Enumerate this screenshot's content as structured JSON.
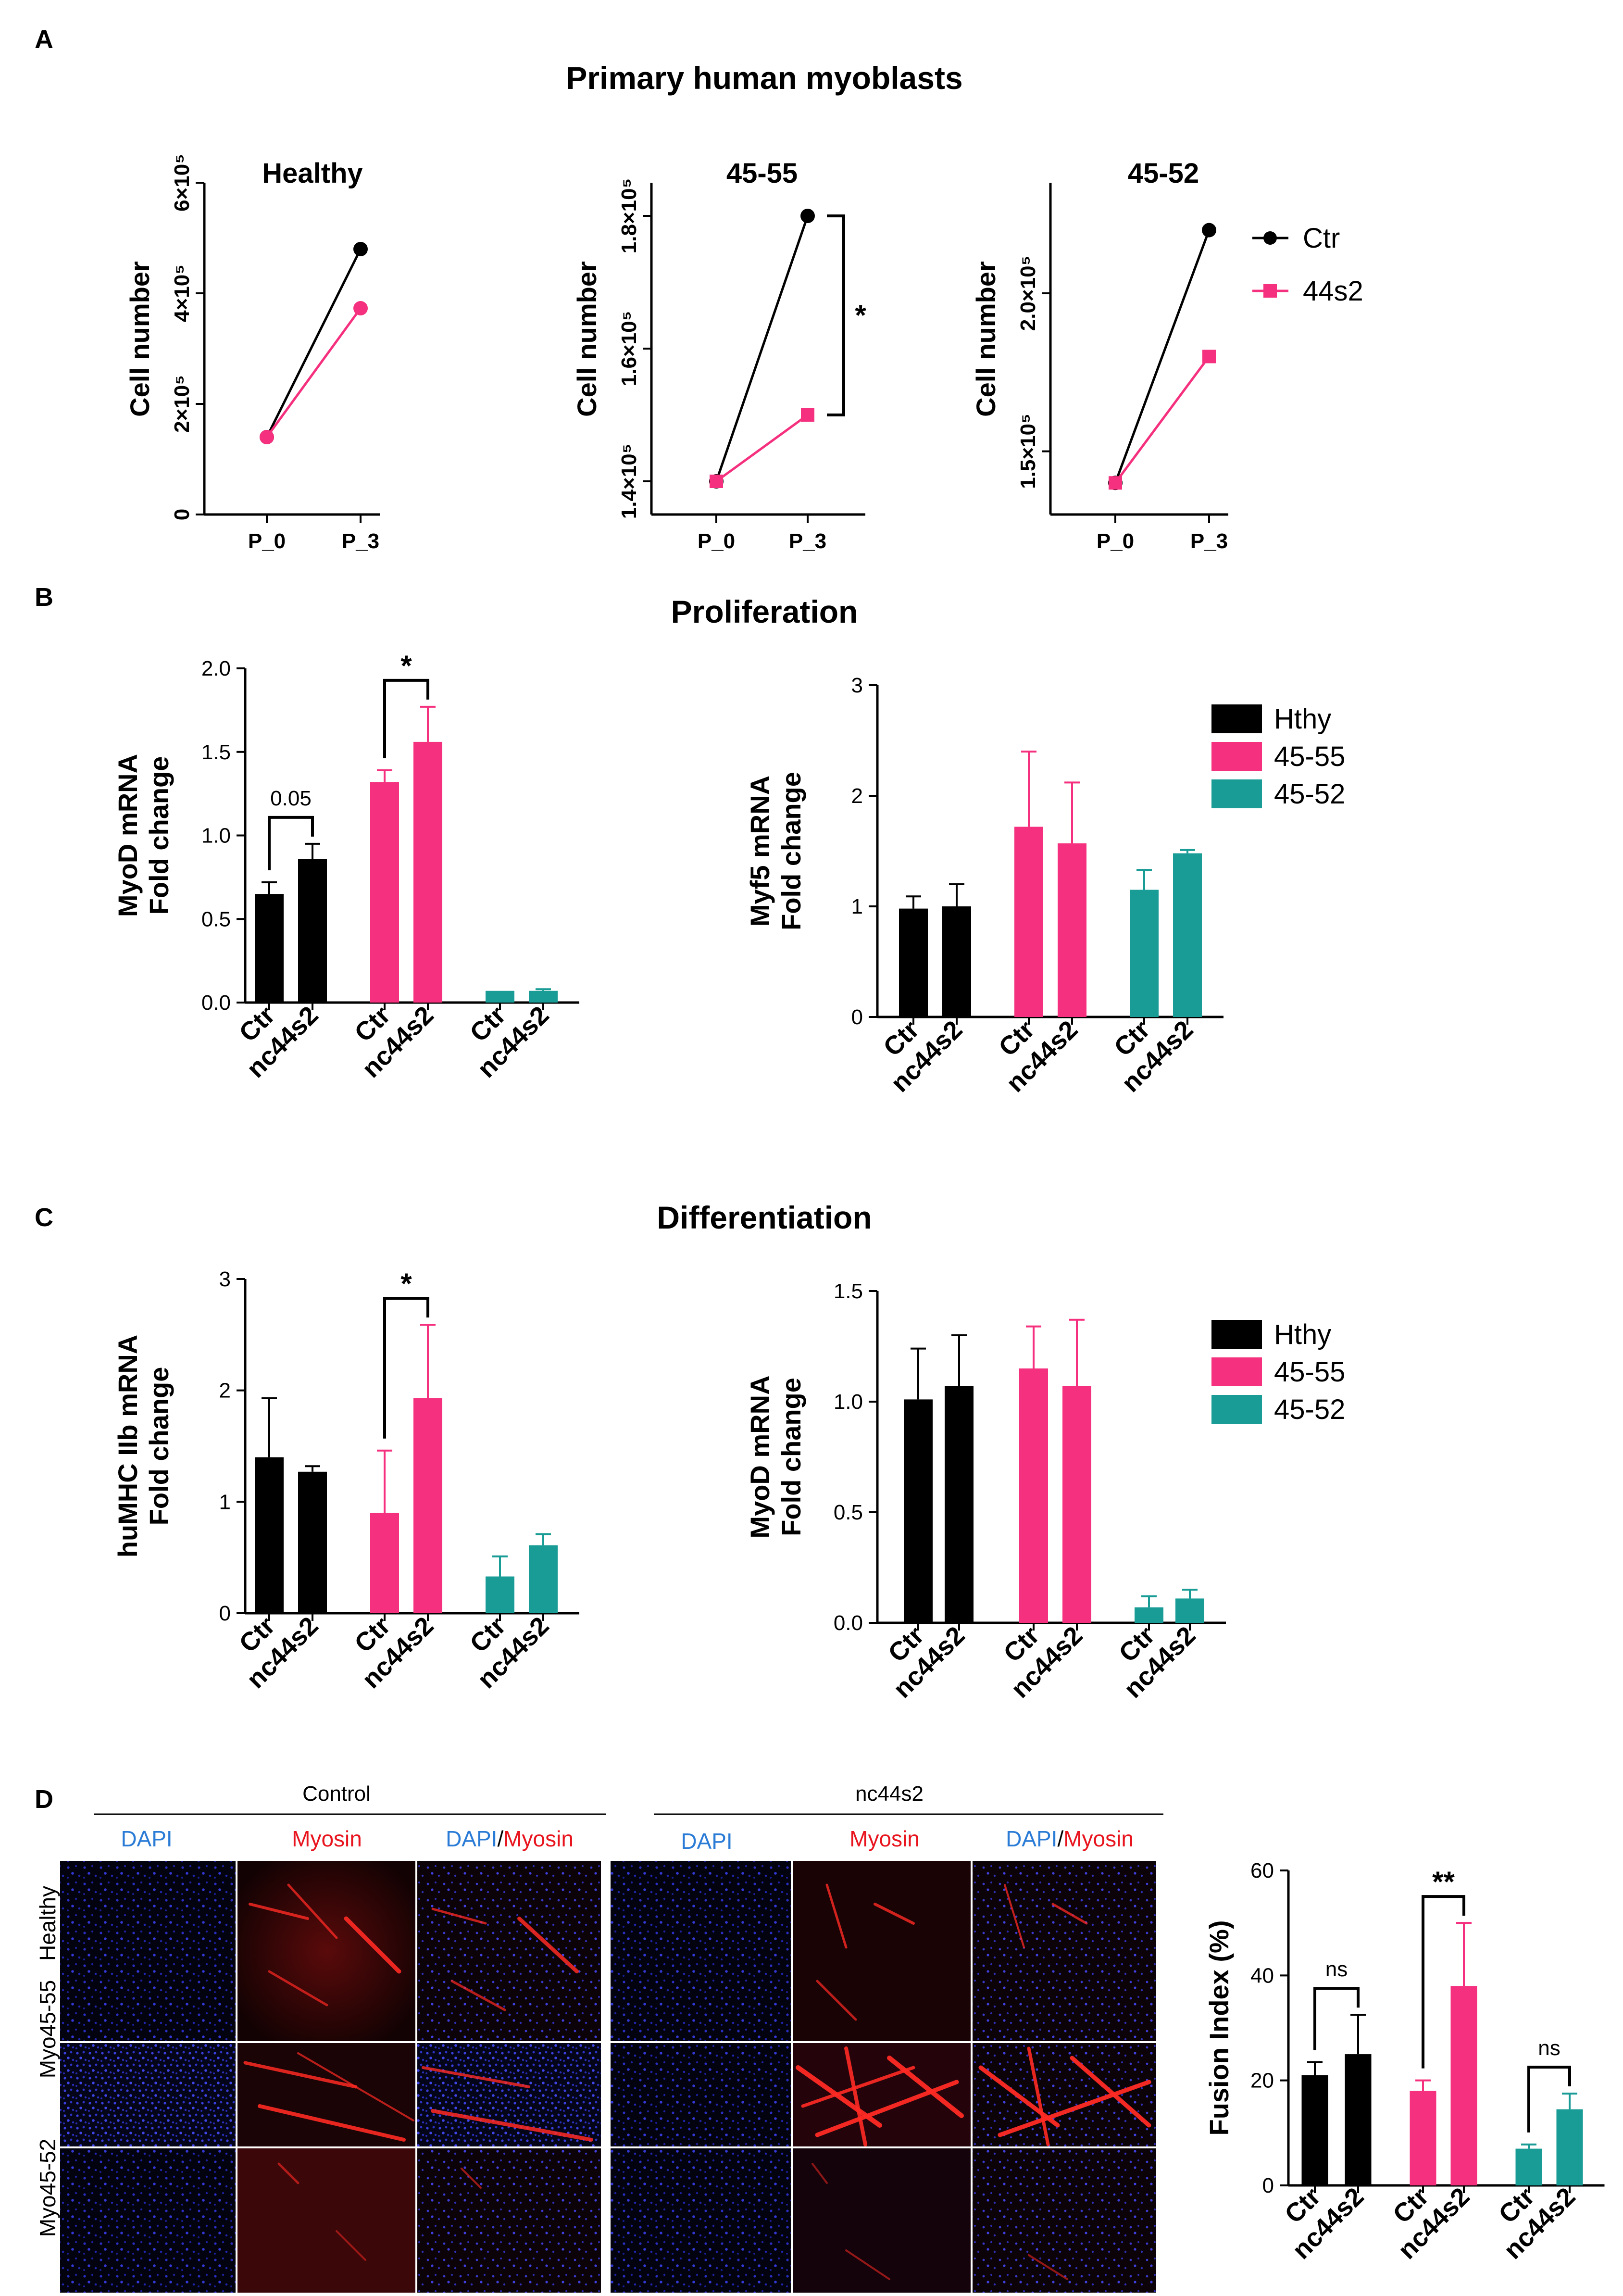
{
  "figure": {
    "panels": {
      "A": "A",
      "B": "B",
      "C": "C",
      "D": "D"
    },
    "titles": {
      "A": "Primary human myoblasts",
      "B": "Proliferation",
      "C": "Differentiation"
    }
  },
  "colors": {
    "black": "#000000",
    "pink": "#f5307e",
    "teal": "#199b96",
    "dapi_blue": "#2a7bd6",
    "myosin_red": "#e8141e"
  },
  "chart_data": [
    {
      "id": "A1",
      "type": "line",
      "title": "Healthy",
      "ylabel": "Cell number",
      "categories": [
        "P_0",
        "P_3"
      ],
      "ylim": [
        0,
        600000
      ],
      "yticks": [
        0,
        200000,
        400000,
        600000
      ],
      "yticklabels": [
        "0",
        "2×10⁵",
        "4×10⁵",
        "6×10⁵"
      ],
      "series": [
        {
          "name": "Ctr",
          "color": "#000000",
          "marker": "circle",
          "values": [
            140000,
            480000
          ]
        },
        {
          "name": "44s2",
          "color": "#f5307e",
          "marker": "circle",
          "values": [
            140000,
            373000
          ]
        }
      ]
    },
    {
      "id": "A2",
      "type": "line",
      "title": "45-55",
      "ylabel": "Cell number",
      "categories": [
        "P_0",
        "P_3"
      ],
      "ylim": [
        135000,
        185000
      ],
      "yticks": [
        140000,
        160000,
        180000
      ],
      "yticklabels": [
        "1.4×10⁵",
        "1.6×10⁵",
        "1.8×10⁵"
      ],
      "significance": "*",
      "series": [
        {
          "name": "Ctr",
          "color": "#000000",
          "marker": "circle",
          "values": [
            140000,
            180000
          ]
        },
        {
          "name": "44s2",
          "color": "#f5307e",
          "marker": "square",
          "values": [
            140000,
            150000
          ]
        }
      ]
    },
    {
      "id": "A3",
      "type": "line",
      "title": "45-52",
      "ylabel": "Cell number",
      "categories": [
        "P_0",
        "P_3"
      ],
      "ylim": [
        130000,
        235000
      ],
      "yticks": [
        150000,
        200000
      ],
      "yticklabels": [
        "1.5×10⁵",
        "2.0×10⁵"
      ],
      "legend": {
        "position": "right",
        "entries": [
          "Ctr",
          "44s2"
        ]
      },
      "series": [
        {
          "name": "Ctr",
          "color": "#000000",
          "marker": "circle",
          "values": [
            140000,
            220000
          ]
        },
        {
          "name": "44s2",
          "color": "#f5307e",
          "marker": "square",
          "values": [
            140000,
            180000
          ]
        }
      ]
    },
    {
      "id": "B1",
      "type": "bar",
      "ylabel_lines": [
        "MyoD mRNA",
        "Fold change"
      ],
      "ylim": [
        0,
        2.0
      ],
      "yticks": [
        0.0,
        0.5,
        1.0,
        1.5,
        2.0
      ],
      "yticklabels": [
        "0.0",
        "0.5",
        "1.0",
        "1.5",
        "2.0"
      ],
      "categories": [
        "Ctr",
        "nc44s2",
        "Ctr",
        "nc44s2",
        "Ctr",
        "nc44s2"
      ],
      "groups": [
        "Hthy",
        "Hthy",
        "45-55",
        "45-55",
        "45-52",
        "45-52"
      ],
      "values": [
        0.65,
        0.86,
        1.32,
        1.56,
        0.07,
        0.07
      ],
      "errors": [
        0.07,
        0.09,
        0.07,
        0.21,
        0.0,
        0.01
      ],
      "comparisons": [
        {
          "pair": [
            0,
            1
          ],
          "label": "0.05"
        },
        {
          "pair": [
            2,
            3
          ],
          "label": "*"
        }
      ]
    },
    {
      "id": "B2",
      "type": "bar",
      "ylabel_lines": [
        "Myf5 mRNA",
        "Fold change"
      ],
      "ylim": [
        0,
        3
      ],
      "yticks": [
        0,
        1,
        2,
        3
      ],
      "yticklabels": [
        "0",
        "1",
        "2",
        "3"
      ],
      "categories": [
        "Ctr",
        "nc44s2",
        "Ctr",
        "nc44s2",
        "Ctr",
        "nc44s2"
      ],
      "groups": [
        "Hthy",
        "Hthy",
        "45-55",
        "45-55",
        "45-52",
        "45-52"
      ],
      "values": [
        0.98,
        1.0,
        1.72,
        1.57,
        1.15,
        1.48
      ],
      "errors": [
        0.11,
        0.2,
        0.68,
        0.55,
        0.18,
        0.03
      ],
      "legend": {
        "position": "right",
        "entries": [
          "Hthy",
          "45-55",
          "45-52"
        ]
      }
    },
    {
      "id": "C1",
      "type": "bar",
      "ylabel_lines": [
        "huMHC IIb mRNA",
        "Fold change"
      ],
      "ylim": [
        0,
        3
      ],
      "yticks": [
        0,
        1,
        2,
        3
      ],
      "yticklabels": [
        "0",
        "1",
        "2",
        "3"
      ],
      "categories": [
        "Ctr",
        "nc44s2",
        "Ctr",
        "nc44s2",
        "Ctr",
        "nc44s2"
      ],
      "groups": [
        "Hthy",
        "Hthy",
        "45-55",
        "45-55",
        "45-52",
        "45-52"
      ],
      "values": [
        1.4,
        1.27,
        0.9,
        1.93,
        0.33,
        0.61
      ],
      "errors": [
        0.53,
        0.05,
        0.56,
        0.66,
        0.18,
        0.1
      ],
      "comparisons": [
        {
          "pair": [
            2,
            3
          ],
          "label": "*"
        }
      ]
    },
    {
      "id": "C2",
      "type": "bar",
      "ylabel_lines": [
        "MyoD mRNA",
        "Fold change"
      ],
      "ylim": [
        0,
        1.5
      ],
      "yticks": [
        0.0,
        0.5,
        1.0,
        1.5
      ],
      "yticklabels": [
        "0.0",
        "0.5",
        "1.0",
        "1.5"
      ],
      "categories": [
        "Ctr",
        "nc44s2",
        "Ctr",
        "nc44s2",
        "Ctr",
        "nc44s2"
      ],
      "groups": [
        "Hthy",
        "Hthy",
        "45-55",
        "45-55",
        "45-52",
        "45-52"
      ],
      "values": [
        1.01,
        1.07,
        1.15,
        1.07,
        0.07,
        0.11
      ],
      "errors": [
        0.23,
        0.23,
        0.19,
        0.3,
        0.05,
        0.04
      ],
      "legend": {
        "position": "right",
        "entries": [
          "Hthy",
          "45-55",
          "45-52"
        ]
      }
    },
    {
      "id": "D1",
      "type": "bar",
      "ylabel_lines": [
        "Fusion Index (%)"
      ],
      "ylim": [
        0,
        60
      ],
      "yticks": [
        0,
        20,
        40,
        60
      ],
      "yticklabels": [
        "0",
        "20",
        "40",
        "60"
      ],
      "categories": [
        "Ctr",
        "nc44s2",
        "Ctr",
        "nc44s2",
        "Ctr",
        "nc44s2"
      ],
      "groups": [
        "Healthy",
        "Healthy",
        "Myo45-55",
        "Myo45-55",
        "Myo45-52",
        "Myo45-52"
      ],
      "values": [
        21,
        25,
        18,
        38,
        7,
        14.5
      ],
      "errors": [
        2.5,
        7.5,
        2,
        12,
        0.8,
        3
      ],
      "comparisons": [
        {
          "pair": [
            0,
            1
          ],
          "label": "ns"
        },
        {
          "pair": [
            2,
            3
          ],
          "label": "**"
        },
        {
          "pair": [
            4,
            5
          ],
          "label": "ns"
        }
      ]
    }
  ],
  "micrographs": {
    "conditions": [
      "Control",
      "nc44s2"
    ],
    "channels": [
      "DAPI",
      "Myosin",
      "DAPI",
      "/",
      "Myosin"
    ],
    "rows": [
      "Healthy",
      "Myo45-55",
      "Myo45-52"
    ]
  }
}
